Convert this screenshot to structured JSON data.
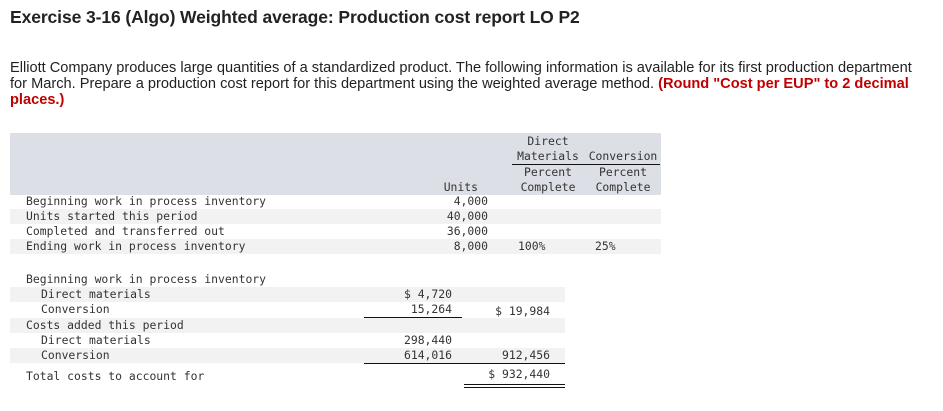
{
  "title": "Exercise 3-16 (Algo) Weighted average: Production cost report LO P2",
  "instructions": {
    "text": "Elliott Company produces large quantities of a standardized product. The following information is available for its first production department for March. Prepare a production cost report for this department using the weighted average method. ",
    "emphasis": "(Round \"Cost per EUP\" to 2 decimal places.)"
  },
  "units_table": {
    "headers": {
      "units": "Units",
      "dm_top": "Direct",
      "dm_bottom": "Materials",
      "conv_top": "Conversion",
      "dm_pct_1": "Percent",
      "dm_pct_2": "Complete",
      "conv_pct_1": "Percent",
      "conv_pct_2": "Complete"
    },
    "rows": [
      {
        "label": "Beginning work in process inventory",
        "units": "4,000",
        "dm": "",
        "conv": ""
      },
      {
        "label": "Units started this period",
        "units": "40,000",
        "dm": "",
        "conv": ""
      },
      {
        "label": "Completed and transferred out",
        "units": "36,000",
        "dm": "",
        "conv": ""
      },
      {
        "label": "Ending work in process inventory",
        "units": "8,000",
        "dm": "100%",
        "conv": "25%"
      }
    ]
  },
  "cost_table": {
    "rows": [
      {
        "label": "Beginning work in process inventory",
        "col1": "",
        "col2": ""
      },
      {
        "label": "Direct materials",
        "col1": "$ 4,720",
        "col2": ""
      },
      {
        "label": "Conversion",
        "col1": "15,264",
        "col2": "$ 19,984"
      },
      {
        "label": "Costs added this period",
        "col1": "",
        "col2": ""
      },
      {
        "label": "Direct materials",
        "col1": "298,440",
        "col2": ""
      },
      {
        "label": "Conversion",
        "col1": "614,016",
        "col2": "912,456"
      },
      {
        "label": "Total costs to account for",
        "col1": "",
        "col2": "$ 932,440"
      }
    ]
  }
}
